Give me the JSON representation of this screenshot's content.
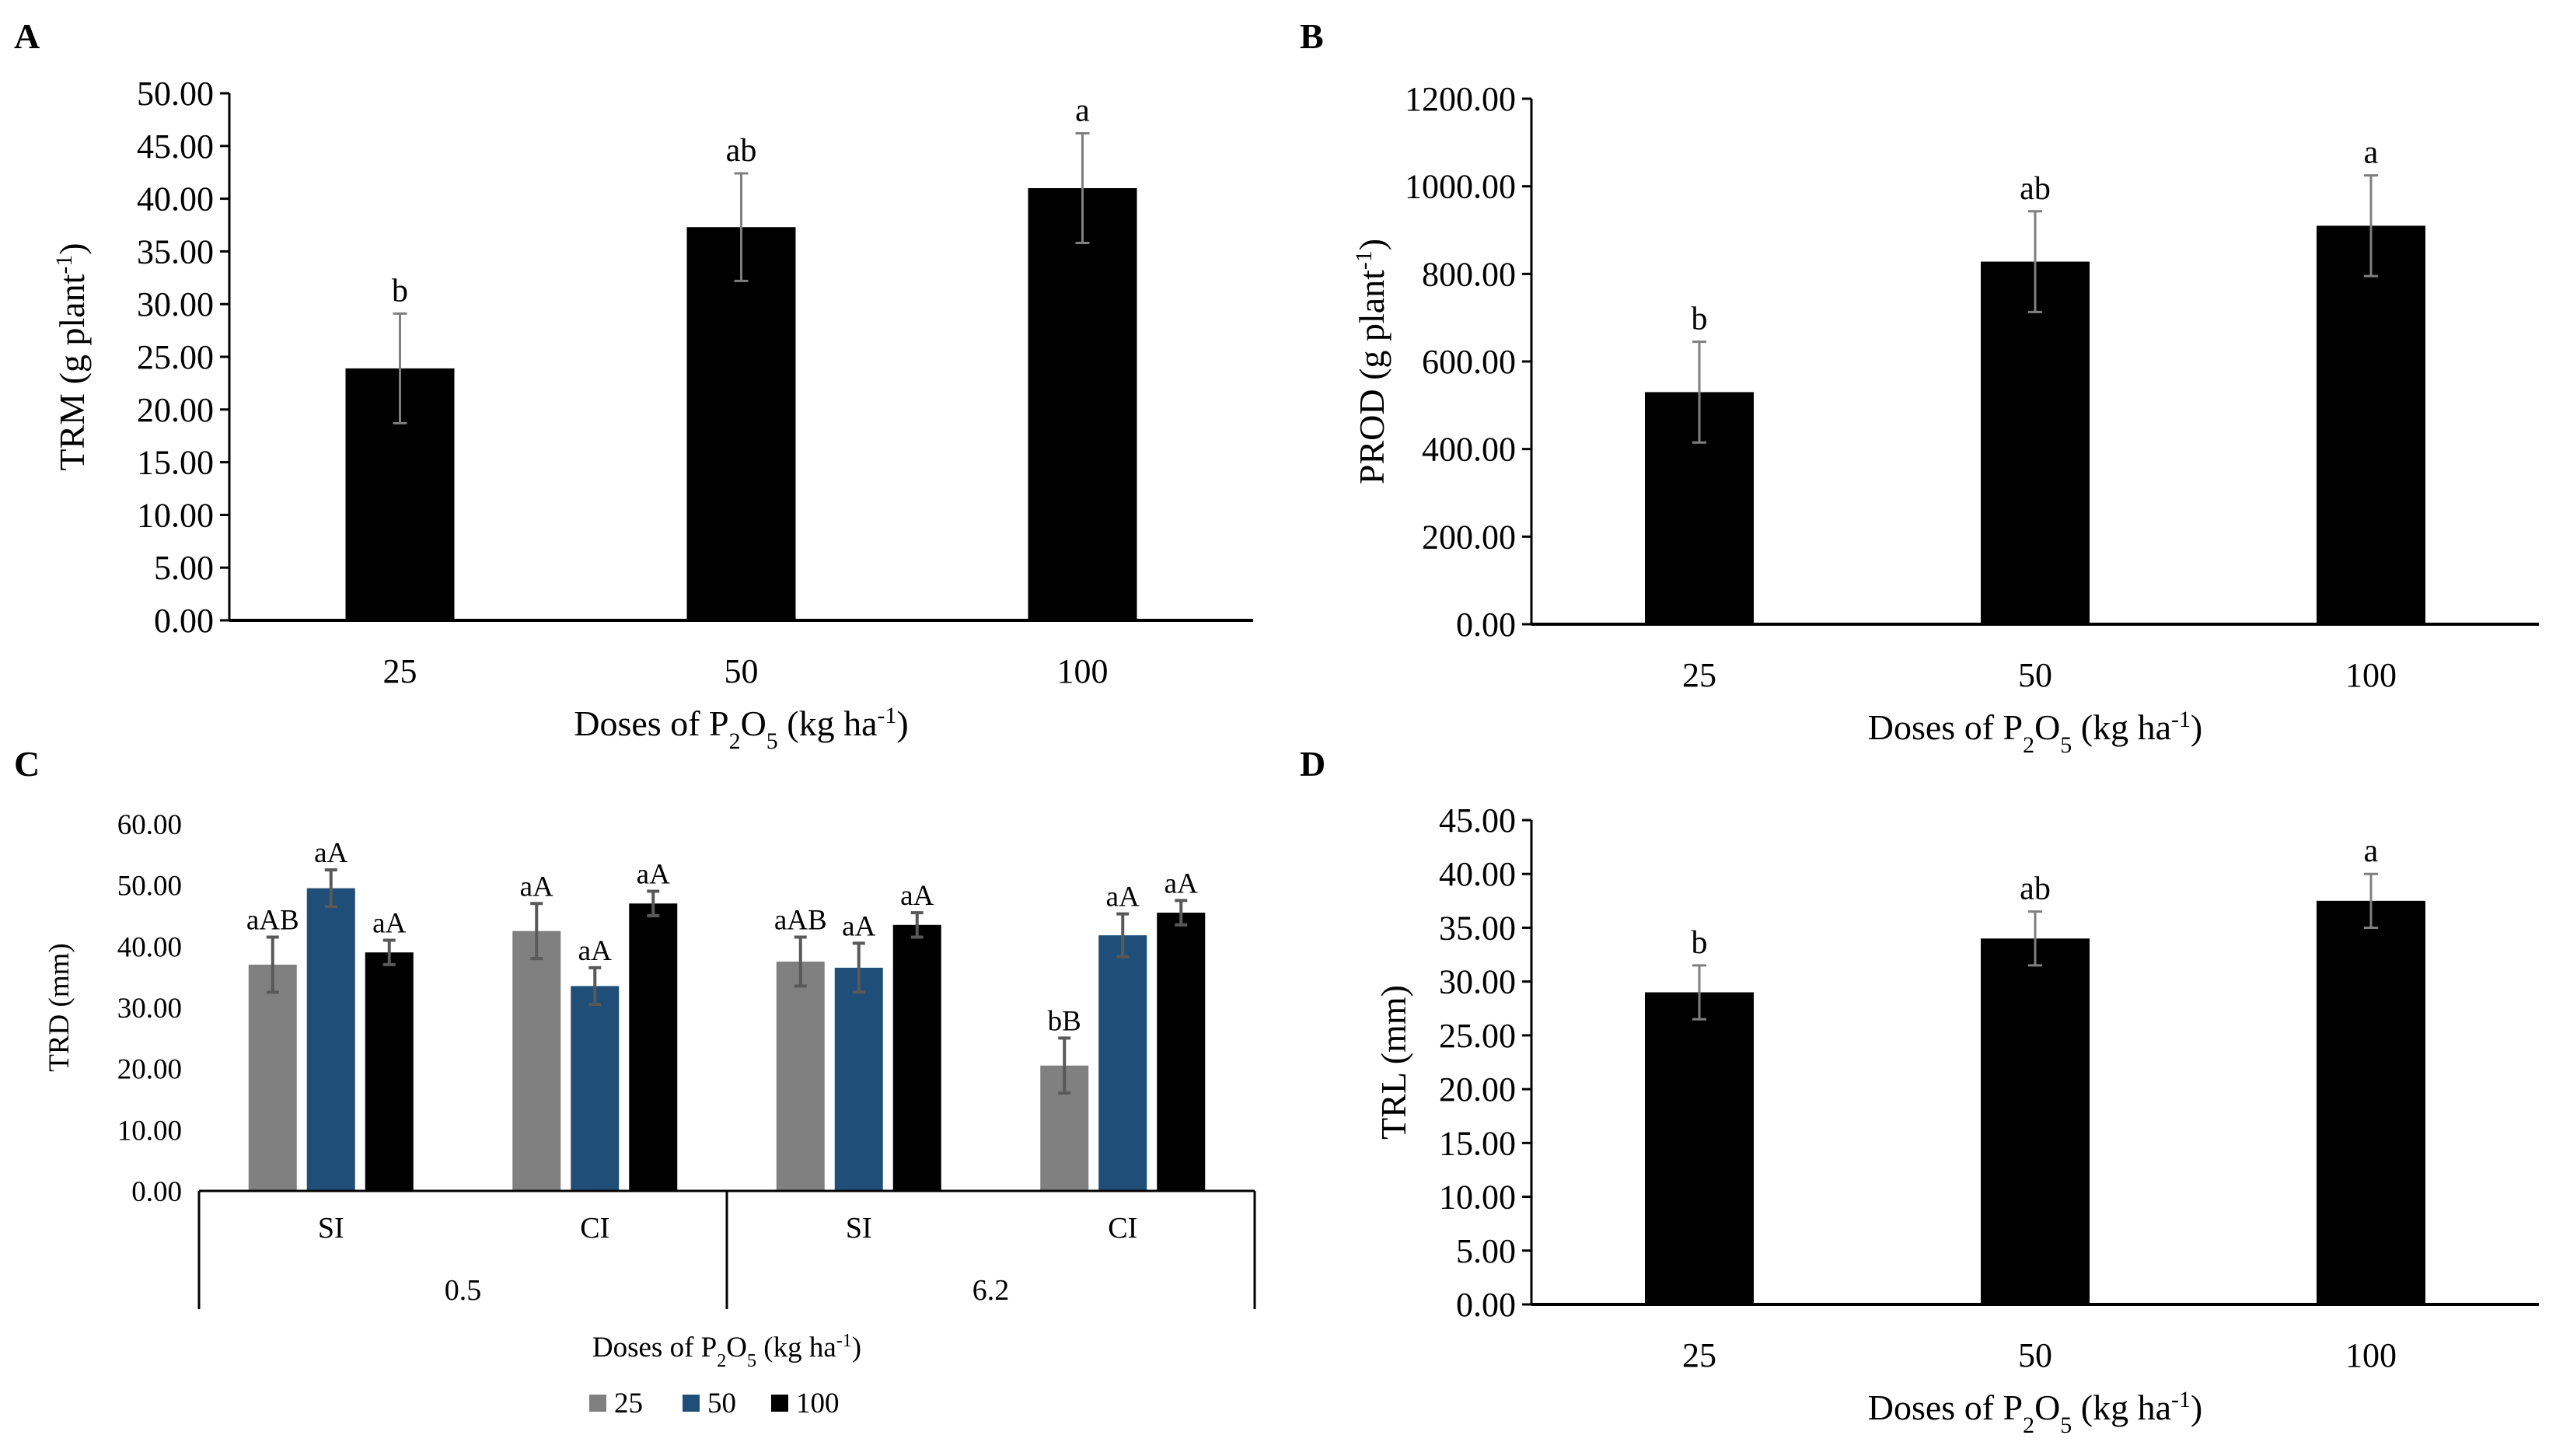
{
  "chart_data": [
    {
      "panel": "A",
      "type": "bar",
      "ylabel": "TRM (g plant",
      "ylabel_sup": "-1",
      "ylabel_close": ")",
      "xlabel": {
        "pre": "Doses of P",
        "sub1": "2",
        "mid": "O",
        "sub2": "5",
        "post": " (kg ha",
        "sup": "-1",
        "close": ")"
      },
      "categories": [
        "25",
        "50",
        "100"
      ],
      "values": [
        23.9,
        37.3,
        41.0
      ],
      "errors": [
        5.2,
        5.1,
        5.2
      ],
      "letters": [
        "b",
        "ab",
        "a"
      ],
      "ylim": [
        0,
        50
      ],
      "ytick_step": 5,
      "ytick_labels": [
        "0.00",
        "5.00",
        "10.00",
        "15.00",
        "20.00",
        "25.00",
        "30.00",
        "35.00",
        "40.00",
        "45.00",
        "50.00"
      ],
      "bar_color": "#000000",
      "error_color": "#7f7f7f"
    },
    {
      "panel": "B",
      "type": "bar",
      "ylabel": "PROD (g plant",
      "ylabel_sup": "-1",
      "ylabel_close": ")",
      "xlabel": {
        "pre": "Doses of P",
        "sub1": "2",
        "mid": "O",
        "sub2": "5",
        "post": " (kg ha",
        "sup": "-1",
        "close": ")"
      },
      "categories": [
        "25",
        "50",
        "100"
      ],
      "values": [
        530,
        828,
        910
      ],
      "errors": [
        115,
        115,
        115
      ],
      "letters": [
        "b",
        "ab",
        "a"
      ],
      "ylim": [
        0,
        1200
      ],
      "ytick_step": 200,
      "ytick_labels": [
        "0.00",
        "200.00",
        "400.00",
        "600.00",
        "800.00",
        "1000.00",
        "1200.00"
      ],
      "bar_color": "#000000",
      "error_color": "#7f7f7f"
    },
    {
      "panel": "C",
      "type": "bar",
      "ylabel": "TRD (mm)",
      "xlabel": {
        "pre": "Doses of P",
        "sub1": "2",
        "mid": "O",
        "sub2": "5",
        "post": " (kg ha",
        "sup": "-1",
        "close": ")"
      },
      "groups": [
        {
          "name": "0.5",
          "subgroups": [
            "SI",
            "CI"
          ]
        },
        {
          "name": "6.2",
          "subgroups": [
            "SI",
            "CI"
          ]
        }
      ],
      "series": [
        {
          "name": "25",
          "color": "#808080",
          "values": [
            37.0,
            42.5,
            37.5,
            20.5
          ],
          "errors": [
            4.5,
            4.5,
            4.0,
            4.5
          ],
          "letters": [
            "aAB",
            "aA",
            "aAB",
            "bB"
          ]
        },
        {
          "name": "50",
          "color": "#1f4e79",
          "values": [
            49.5,
            33.5,
            36.5,
            41.8
          ],
          "errors": [
            3.0,
            3.0,
            4.0,
            3.5
          ],
          "letters": [
            "aA",
            "aA",
            "aA",
            "aA"
          ]
        },
        {
          "name": "100",
          "color": "#000000",
          "values": [
            39.0,
            47.0,
            43.5,
            45.5
          ],
          "errors": [
            2.0,
            2.0,
            2.0,
            2.0
          ],
          "letters": [
            "aA",
            "aA",
            "aA",
            "aA"
          ]
        }
      ],
      "ylim": [
        0,
        60
      ],
      "ytick_step": 10,
      "ytick_labels": [
        "0.00",
        "10.00",
        "20.00",
        "30.00",
        "40.00",
        "50.00",
        "60.00"
      ],
      "error_color": "#595959",
      "legend": [
        "25",
        "50",
        "100"
      ]
    },
    {
      "panel": "D",
      "type": "bar",
      "ylabel": "TRL (mm)",
      "xlabel": {
        "pre": "Doses of P",
        "sub1": "2",
        "mid": "O",
        "sub2": "5",
        "post": " (kg ha",
        "sup": "-1",
        "close": ")"
      },
      "categories": [
        "25",
        "50",
        "100"
      ],
      "values": [
        29.0,
        34.0,
        37.5
      ],
      "errors": [
        2.5,
        2.5,
        2.5
      ],
      "letters": [
        "b",
        "ab",
        "a"
      ],
      "ylim": [
        0,
        45
      ],
      "ytick_step": 5,
      "ytick_labels": [
        "0.00",
        "5.00",
        "10.00",
        "15.00",
        "20.00",
        "25.00",
        "30.00",
        "35.00",
        "40.00",
        "45.00"
      ],
      "bar_color": "#000000",
      "error_color": "#7f7f7f"
    }
  ]
}
